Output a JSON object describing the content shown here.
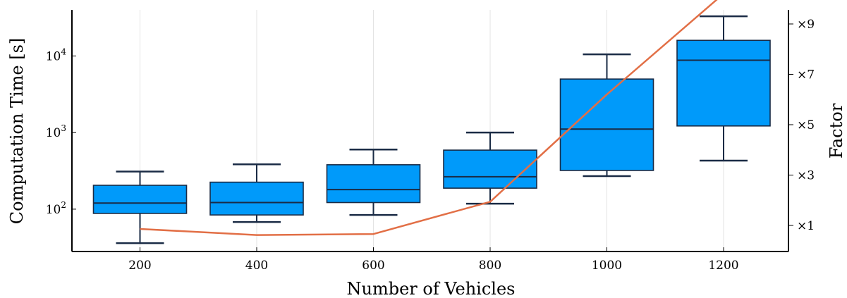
{
  "chart_data": {
    "type": "box",
    "xlabel": "Number of Vehicles",
    "ylabel": "Computation Time [s]",
    "y2label": "Factor",
    "yscale": "log",
    "ylim": [
      28,
      40000
    ],
    "grid": "vertical",
    "categories": [
      "200",
      "400",
      "600",
      "800",
      "1000",
      "1200"
    ],
    "boxes": [
      {
        "category": "200",
        "whisker_low": 36,
        "q1": 88,
        "median": 120,
        "q3": 205,
        "whisker_high": 310
      },
      {
        "category": "400",
        "whisker_low": 68,
        "q1": 84,
        "median": 122,
        "q3": 225,
        "whisker_high": 385
      },
      {
        "category": "600",
        "whisker_low": 84,
        "q1": 122,
        "median": 180,
        "q3": 380,
        "whisker_high": 600
      },
      {
        "category": "800",
        "whisker_low": 118,
        "q1": 188,
        "median": 265,
        "q3": 590,
        "whisker_high": 1000
      },
      {
        "category": "1000",
        "whisker_low": 270,
        "q1": 320,
        "median": 1110,
        "q3": 5000,
        "whisker_high": 10500
      },
      {
        "category": "1200",
        "whisker_low": 430,
        "q1": 1220,
        "median": 8800,
        "q3": 16000,
        "whisker_high": 33000
      }
    ],
    "factor_line": {
      "x": [
        "200",
        "400",
        "600",
        "800",
        "1000",
        "1200"
      ],
      "values": [
        0.86,
        0.62,
        0.66,
        1.94,
        6.2,
        10.2
      ]
    },
    "y_ticks": [
      {
        "value": 100,
        "base": "10",
        "exp": "2"
      },
      {
        "value": 1000,
        "base": "10",
        "exp": "3"
      },
      {
        "value": 10000,
        "base": "10",
        "exp": "4"
      }
    ],
    "y2_ticks": [
      {
        "value": 1,
        "label": "×1"
      },
      {
        "value": 3,
        "label": "×3"
      },
      {
        "value": 5,
        "label": "×5"
      },
      {
        "value": 7,
        "label": "×7"
      },
      {
        "value": 9,
        "label": "×9"
      }
    ],
    "colors": {
      "box_fill": "#009AFA",
      "box_stroke": "#1A2B45",
      "line": "#E26F46",
      "grid": "#E3E3E3",
      "axis": "#000000"
    }
  }
}
